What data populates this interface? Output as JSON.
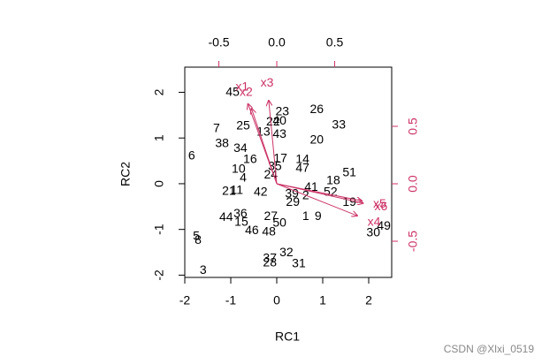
{
  "chart_data": {
    "type": "biplot",
    "xlabel": "RC1",
    "ylabel": "RC2",
    "xlim": [
      -2.0,
      2.5
    ],
    "ylim": [
      -2.05,
      2.55
    ],
    "xticks": [
      -2,
      -1,
      0,
      1,
      2
    ],
    "yticks": [
      -2,
      -1,
      0,
      1,
      2
    ],
    "x2lim": [
      -0.794,
      0.992
    ],
    "y2lim": [
      -0.815,
      1.015
    ],
    "x2ticks": [
      -0.5,
      {
        "value": 0,
        "label": "0.0"
      },
      0.5
    ],
    "y2ticks": [
      -0.5,
      {
        "value": 0,
        "label": "0.0"
      },
      0.5
    ],
    "points": {
      "color": "#000000",
      "labels": [
        "45",
        "23",
        "26",
        "22",
        "40",
        "7",
        "25",
        "33",
        "13",
        "43",
        "20",
        "38",
        "34",
        "6",
        "17",
        "14",
        "16",
        "35",
        "47",
        "10",
        "4",
        "24",
        "21",
        "11",
        "42",
        "41",
        "18",
        "51",
        "52",
        "39",
        "2",
        "29",
        "19",
        "36",
        "44",
        "15",
        "27",
        "1",
        "9",
        "50",
        "46",
        "48",
        "49",
        "30",
        "5",
        "8",
        "32",
        "37",
        "28",
        "31",
        "3"
      ],
      "x": [
        -0.96,
        0.12,
        0.87,
        -0.08,
        0.06,
        -1.31,
        -0.73,
        1.35,
        -0.29,
        0.06,
        0.87,
        -1.19,
        -0.79,
        -1.85,
        0.08,
        0.56,
        -0.58,
        -0.04,
        0.56,
        -0.83,
        -0.73,
        -0.13,
        -1.04,
        -0.87,
        -0.35,
        0.75,
        1.23,
        1.58,
        1.17,
        0.33,
        0.63,
        0.35,
        1.58,
        -0.79,
        -1.1,
        -0.77,
        -0.13,
        0.63,
        0.9,
        0.06,
        -0.54,
        -0.17,
        2.33,
        2.1,
        -1.75,
        -1.71,
        0.21,
        -0.15,
        -0.15,
        0.48,
        -1.6
      ],
      "y": [
        1.99,
        1.57,
        1.62,
        1.35,
        1.37,
        1.2,
        1.26,
        1.28,
        1.12,
        1.08,
        0.95,
        0.87,
        0.77,
        0.6,
        0.54,
        0.52,
        0.52,
        0.37,
        0.33,
        0.31,
        0.12,
        0.19,
        -0.17,
        -0.15,
        -0.19,
        -0.08,
        0.06,
        0.23,
        -0.19,
        -0.23,
        -0.27,
        -0.41,
        -0.41,
        -0.66,
        -0.74,
        -0.85,
        -0.72,
        -0.72,
        -0.72,
        -0.87,
        -1.03,
        -1.06,
        -0.93,
        -1.08,
        -1.16,
        -1.24,
        -1.51,
        -1.64,
        -1.74,
        -1.76,
        -1.9
      ]
    },
    "loadings": {
      "color": "#cc3366",
      "names": [
        "x1",
        "x2",
        "x3",
        "x4",
        "x5",
        "x6"
      ],
      "x": [
        -0.25,
        -0.22,
        -0.07,
        0.7,
        0.74,
        0.75
      ],
      "y": [
        0.7,
        0.66,
        0.73,
        -0.28,
        -0.15,
        -0.17
      ]
    }
  },
  "watermark": "CSDN @Xlxi_0519"
}
